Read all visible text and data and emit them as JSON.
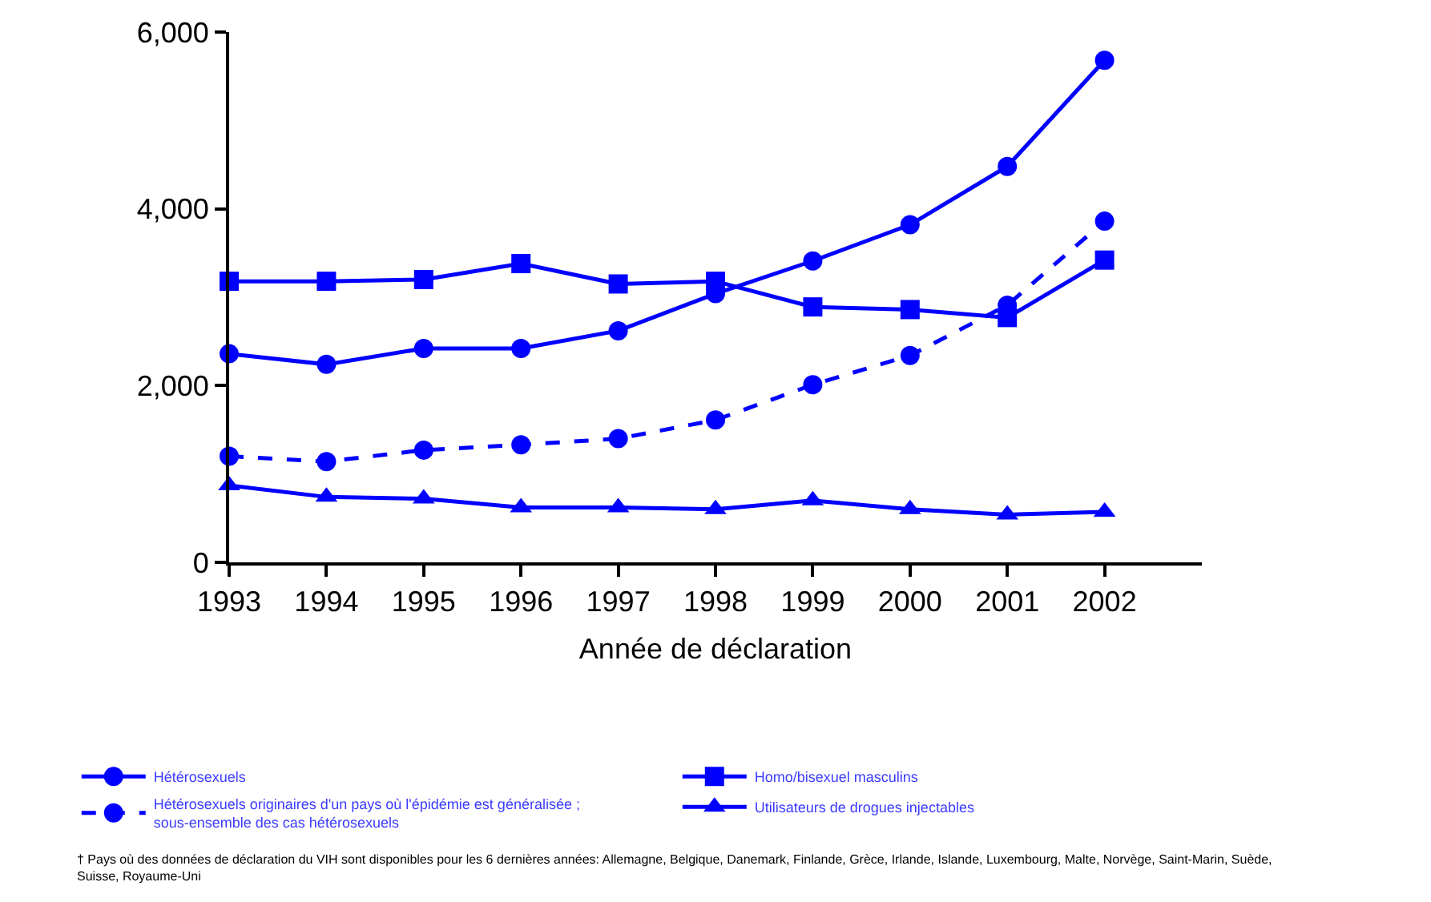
{
  "chart_data": {
    "type": "line",
    "xlabel": "Année de déclaration",
    "x": [
      1993,
      1994,
      1995,
      1996,
      1997,
      1998,
      1999,
      2000,
      2001,
      2002
    ],
    "xlim": [
      1993,
      2003
    ],
    "xticks": [
      1993,
      1994,
      1995,
      1996,
      1997,
      1998,
      1999,
      2000,
      2001,
      2002
    ],
    "ylim": [
      0,
      6000
    ],
    "yticks": [
      {
        "value": 0,
        "label": "0"
      },
      {
        "value": 2000,
        "label": "2,000"
      },
      {
        "value": 4000,
        "label": "4,000"
      },
      {
        "value": 6000,
        "label": "6,000"
      }
    ],
    "grid": false,
    "legend": "bottom",
    "series": [
      {
        "name": "Hétérosexuels",
        "color": "#0000ff",
        "marker": "circle",
        "line_style": "solid",
        "values": [
          2360,
          2240,
          2420,
          2420,
          2620,
          3040,
          3410,
          3820,
          4480,
          5680
        ]
      },
      {
        "name": "Homo/bisexuel masculins",
        "color": "#0000ff",
        "marker": "square",
        "line_style": "solid",
        "values": [
          3180,
          3180,
          3200,
          3380,
          3150,
          3180,
          2890,
          2860,
          2770,
          3420
        ]
      },
      {
        "name": "Hétérosexuels originaires d'un pays où l'épidémie est généralisée ;\nsous-ensemble des cas hétérosexuels",
        "color": "#0000ff",
        "marker": "circle",
        "line_style": "dashed",
        "values": [
          1200,
          1140,
          1270,
          1330,
          1400,
          1610,
          2010,
          2340,
          2910,
          3860
        ]
      },
      {
        "name": "Utilisateurs de drogues injectables",
        "color": "#0000ff",
        "marker": "triangle",
        "line_style": "solid",
        "values": [
          870,
          740,
          720,
          620,
          620,
          600,
          700,
          600,
          540,
          570
        ]
      }
    ],
    "annotations": [
      "† Pays où des données de déclaration du VIH sont disponibles pour les 6 dernières années: Allemagne, Belgique, Danemark, Finlande, Grèce, Irlande, Islande, Luxembourg, Malte, Norvège, Saint-Marin, Suède,\nSuisse, Royaume-Uni"
    ]
  }
}
